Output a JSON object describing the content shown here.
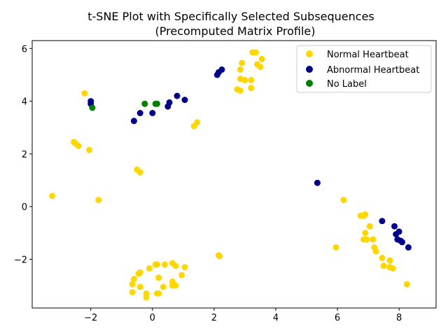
{
  "chart_data": {
    "type": "scatter",
    "title": "t-SNE Plot with Specifically Selected Subsequences",
    "subtitle": "(Precomputed Matrix Profile)",
    "xlabel": "",
    "ylabel": "",
    "xlim": [
      -3.9,
      9.2
    ],
    "ylim": [
      -3.85,
      6.3
    ],
    "xticks": [
      -2,
      0,
      2,
      4,
      6,
      8
    ],
    "yticks": [
      -2,
      0,
      2,
      4,
      6
    ],
    "xtick_labels": [
      "−2",
      "0",
      "2",
      "4",
      "6",
      "8"
    ],
    "ytick_labels": [
      "−2",
      "0",
      "2",
      "4",
      "6"
    ],
    "grid": false,
    "legend_position": "top-right",
    "series": [
      {
        "name": "Normal Heartbeat",
        "color": "#FFD700",
        "points": [
          [
            -2.2,
            4.3
          ],
          [
            -2.55,
            2.45
          ],
          [
            -2.5,
            2.4
          ],
          [
            -2.4,
            2.3
          ],
          [
            -2.05,
            2.15
          ],
          [
            -3.25,
            0.4
          ],
          [
            -1.75,
            0.25
          ],
          [
            -0.5,
            1.4
          ],
          [
            -0.4,
            1.3
          ],
          [
            1.35,
            3.05
          ],
          [
            1.45,
            3.2
          ],
          [
            3.25,
            5.85
          ],
          [
            3.35,
            5.85
          ],
          [
            2.9,
            5.45
          ],
          [
            3.55,
            5.6
          ],
          [
            3.4,
            5.4
          ],
          [
            3.5,
            5.3
          ],
          [
            2.85,
            5.2
          ],
          [
            2.85,
            4.85
          ],
          [
            3.0,
            4.8
          ],
          [
            3.2,
            4.8
          ],
          [
            2.75,
            4.45
          ],
          [
            2.85,
            4.4
          ],
          [
            3.2,
            4.5
          ],
          [
            6.2,
            0.25
          ],
          [
            5.95,
            -1.55
          ],
          [
            2.15,
            -1.85
          ],
          [
            2.18,
            -1.88
          ],
          [
            6.75,
            -0.35
          ],
          [
            6.9,
            -0.3
          ],
          [
            6.85,
            -0.35
          ],
          [
            7.05,
            -0.75
          ],
          [
            6.9,
            -1.0
          ],
          [
            6.85,
            -1.25
          ],
          [
            6.95,
            -1.25
          ],
          [
            7.15,
            -1.25
          ],
          [
            7.2,
            -1.55
          ],
          [
            7.25,
            -1.7
          ],
          [
            7.45,
            -1.95
          ],
          [
            7.7,
            -2.05
          ],
          [
            7.5,
            -2.25
          ],
          [
            7.7,
            -2.3
          ],
          [
            7.8,
            -2.35
          ],
          [
            8.25,
            -2.95
          ],
          [
            0.1,
            -2.2
          ],
          [
            0.15,
            -2.2
          ],
          [
            0.4,
            -2.2
          ],
          [
            0.65,
            -2.15
          ],
          [
            0.75,
            -2.25
          ],
          [
            1.05,
            -2.3
          ],
          [
            -0.1,
            -2.35
          ],
          [
            -0.4,
            -2.5
          ],
          [
            -0.45,
            -2.55
          ],
          [
            0.95,
            -2.6
          ],
          [
            -0.6,
            -2.75
          ],
          [
            0.2,
            -2.7
          ],
          [
            0.65,
            -2.85
          ],
          [
            -0.65,
            -2.95
          ],
          [
            -0.4,
            -3.05
          ],
          [
            0.35,
            -3.05
          ],
          [
            0.65,
            -3.0
          ],
          [
            0.75,
            -3.0
          ],
          [
            -0.65,
            -3.25
          ],
          [
            -0.2,
            -3.3
          ],
          [
            0.15,
            -3.3
          ],
          [
            0.2,
            -3.3
          ],
          [
            -0.2,
            -3.45
          ]
        ]
      },
      {
        "name": "Abnormal Heartbeat",
        "color": "#00008B",
        "points": [
          [
            -2.0,
            4.0
          ],
          [
            -2.0,
            3.9
          ],
          [
            -0.6,
            3.25
          ],
          [
            -0.4,
            3.55
          ],
          [
            0.0,
            3.55
          ],
          [
            0.5,
            3.8
          ],
          [
            0.55,
            3.95
          ],
          [
            0.8,
            4.2
          ],
          [
            1.05,
            4.05
          ],
          [
            2.1,
            5.0
          ],
          [
            2.15,
            5.1
          ],
          [
            2.25,
            5.2
          ],
          [
            5.35,
            0.9
          ],
          [
            7.45,
            -0.55
          ],
          [
            7.85,
            -0.75
          ],
          [
            7.9,
            -1.05
          ],
          [
            8.0,
            -0.95
          ],
          [
            7.95,
            -1.25
          ],
          [
            8.05,
            -1.3
          ],
          [
            8.1,
            -1.35
          ],
          [
            8.3,
            -1.55
          ]
        ]
      },
      {
        "name": "No Label",
        "color": "#008000",
        "points": [
          [
            -1.95,
            3.75
          ],
          [
            -0.25,
            3.9
          ],
          [
            0.1,
            3.9
          ],
          [
            0.15,
            3.9
          ]
        ]
      }
    ]
  }
}
